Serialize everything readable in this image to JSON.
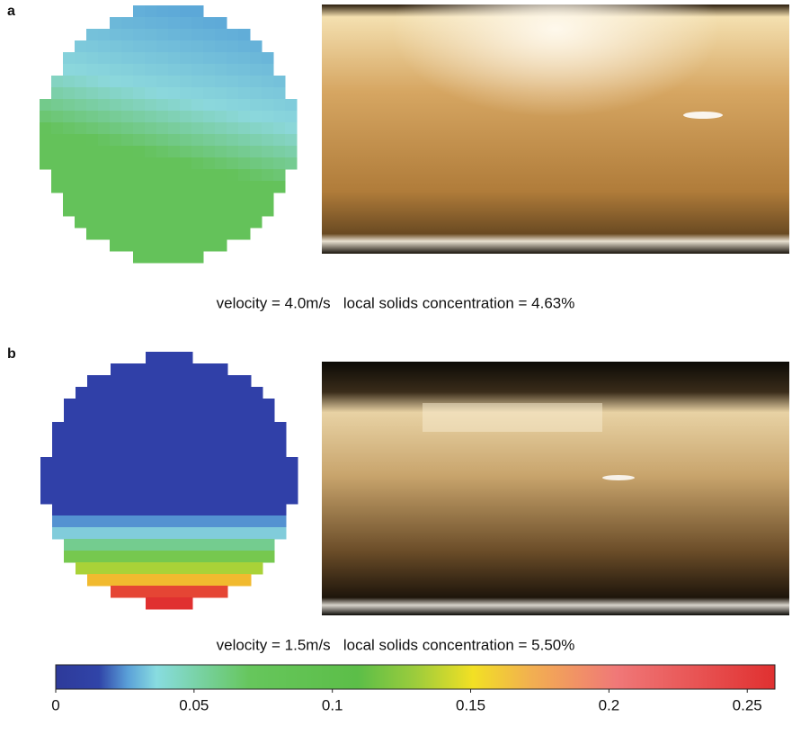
{
  "panels": [
    {
      "label": "a",
      "caption": "velocity = 4.0m/s   local solids concentration = 4.63%"
    },
    {
      "label": "b",
      "caption": "velocity = 1.5m/s   local solids concentration = 5.50%"
    }
  ],
  "colorbar": {
    "range": [
      0,
      0.26
    ],
    "ticks": [
      0,
      0.05,
      0.1,
      0.15,
      0.2,
      0.25
    ]
  }
}
